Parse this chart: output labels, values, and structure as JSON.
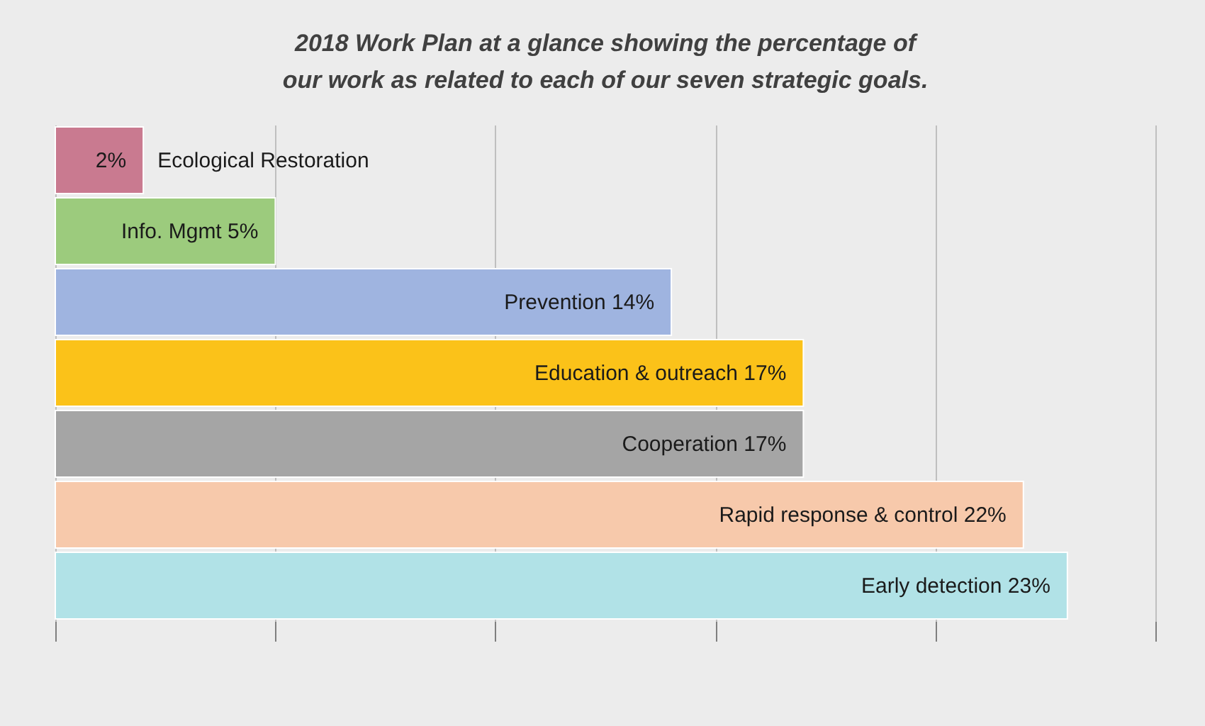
{
  "chart_data": {
    "type": "bar",
    "orientation": "horizontal",
    "title": "2018 Work Plan at a glance showing the percentage of our work as related to each of our seven strategic goals.",
    "categories": [
      "Ecological Restoration",
      "Info. Mgmt",
      "Prevention",
      "Education & outreach",
      "Cooperation",
      "Rapid response & control",
      "Early detection"
    ],
    "values": [
      2,
      5,
      14,
      17,
      17,
      22,
      23
    ],
    "value_labels": [
      "2%",
      "5%",
      "14%",
      "17%",
      "17%",
      "22%",
      "23%"
    ],
    "colors": [
      "#c97a90",
      "#9ccb7d",
      "#9fb4e0",
      "#fbc219",
      "#a5a5a5",
      "#f7c9ab",
      "#b1e2e7"
    ],
    "xlim": [
      0,
      25
    ],
    "xticks": [
      {
        "value": 0,
        "label": null
      },
      {
        "value": 5,
        "label": null
      },
      {
        "value": 10,
        "label": null
      },
      {
        "value": 15,
        "label": null
      },
      {
        "value": 20,
        "label": null
      },
      {
        "value": 25,
        "label": null
      }
    ],
    "tick_labels": false,
    "grid": "x",
    "legend": false
  }
}
